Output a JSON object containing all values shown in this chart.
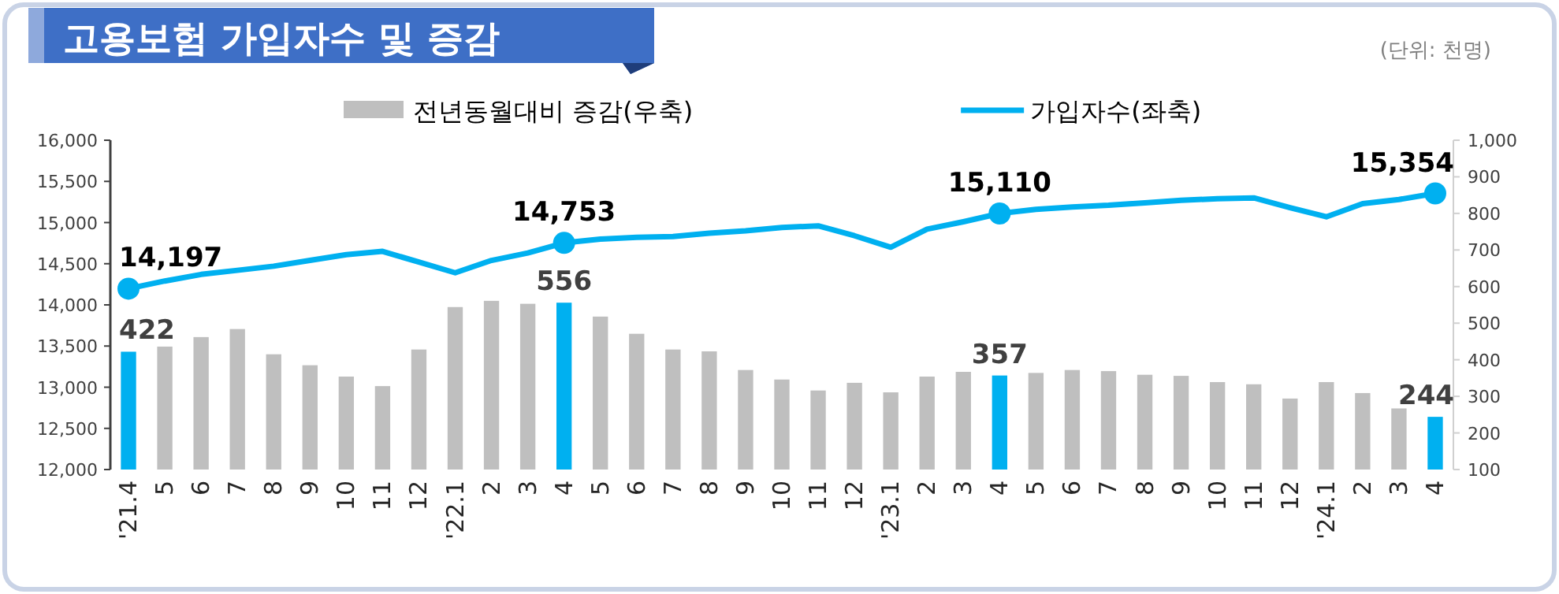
{
  "chart_data": {
    "type": "bar",
    "title": "고용보험 가입자수 및 증감",
    "annotations": [
      "(단위: 천명)"
    ],
    "legend": "top",
    "categories": [
      "'21.4",
      "5",
      "6",
      "7",
      "8",
      "9",
      "10",
      "11",
      "12",
      "'22.1",
      "2",
      "3",
      "4",
      "5",
      "6",
      "7",
      "8",
      "9",
      "10",
      "11",
      "12",
      "'23.1",
      "2",
      "3",
      "4",
      "5",
      "6",
      "7",
      "8",
      "9",
      "10",
      "11",
      "12",
      "'24.1",
      "2",
      "3",
      "4"
    ],
    "ylim": [
      12000,
      16000
    ],
    "yticks": [
      {
        "value": 12000,
        "label": "12,000"
      },
      {
        "value": 12500,
        "label": "12,500"
      },
      {
        "value": 13000,
        "label": "13,000"
      },
      {
        "value": 13500,
        "label": "13,500"
      },
      {
        "value": 14000,
        "label": "14,000"
      },
      {
        "value": 14500,
        "label": "14,500"
      },
      {
        "value": 15000,
        "label": "15,000"
      },
      {
        "value": 15500,
        "label": "15,500"
      },
      {
        "value": 16000,
        "label": "16,000"
      }
    ],
    "y2lim": [
      100,
      1000
    ],
    "y2ticks": [
      100,
      200,
      300,
      400,
      500,
      600,
      700,
      800,
      900,
      {
        "value": 1000,
        "label": "1,000"
      }
    ],
    "series": [
      {
        "name": "전년동월대비 증감(우축)",
        "type": "bar",
        "axis": "y2",
        "color": "#bfbfbf",
        "colors": [
          "#00b0f0",
          "#bfbfbf",
          "#bfbfbf",
          "#bfbfbf",
          "#bfbfbf",
          "#bfbfbf",
          "#bfbfbf",
          "#bfbfbf",
          "#bfbfbf",
          "#bfbfbf",
          "#bfbfbf",
          "#bfbfbf",
          "#00b0f0",
          "#bfbfbf",
          "#bfbfbf",
          "#bfbfbf",
          "#bfbfbf",
          "#bfbfbf",
          "#bfbfbf",
          "#bfbfbf",
          "#bfbfbf",
          "#bfbfbf",
          "#bfbfbf",
          "#bfbfbf",
          "#00b0f0",
          "#bfbfbf",
          "#bfbfbf",
          "#bfbfbf",
          "#bfbfbf",
          "#bfbfbf",
          "#bfbfbf",
          "#bfbfbf",
          "#bfbfbf",
          "#bfbfbf",
          "#bfbfbf",
          "#bfbfbf",
          "#00b0f0"
        ],
        "values": [
          422,
          436,
          462,
          484,
          415,
          385,
          354,
          328,
          428,
          544,
          561,
          553,
          556,
          518,
          471,
          428,
          423,
          372,
          346,
          316,
          337,
          311,
          354,
          367,
          357,
          364,
          372,
          369,
          359,
          356,
          339,
          333,
          294,
          339,
          309,
          267,
          244
        ],
        "value_labels": [
          "422",
          null,
          null,
          null,
          null,
          null,
          null,
          null,
          null,
          null,
          null,
          null,
          "556",
          null,
          null,
          null,
          null,
          null,
          null,
          null,
          null,
          null,
          null,
          null,
          "357",
          null,
          null,
          null,
          null,
          null,
          null,
          null,
          null,
          null,
          null,
          null,
          "244"
        ]
      },
      {
        "name": "가입자수(좌축)",
        "type": "line",
        "axis": "y",
        "color": "#00b0f0",
        "values": [
          14197,
          14290,
          14370,
          14420,
          14470,
          14540,
          14610,
          14650,
          14520,
          14390,
          14540,
          14630,
          14753,
          14800,
          14820,
          14830,
          14870,
          14900,
          14940,
          14960,
          14840,
          14700,
          14920,
          15010,
          15110,
          15160,
          15190,
          15210,
          15240,
          15270,
          15290,
          15300,
          15180,
          15070,
          15230,
          15280,
          15354
        ],
        "value_labels": [
          "14,197",
          null,
          null,
          null,
          null,
          null,
          null,
          null,
          null,
          null,
          null,
          null,
          "14,753",
          null,
          null,
          null,
          null,
          null,
          null,
          null,
          null,
          null,
          null,
          null,
          "15,110",
          null,
          null,
          null,
          null,
          null,
          null,
          null,
          null,
          null,
          null,
          null,
          "15,354"
        ]
      }
    ]
  }
}
